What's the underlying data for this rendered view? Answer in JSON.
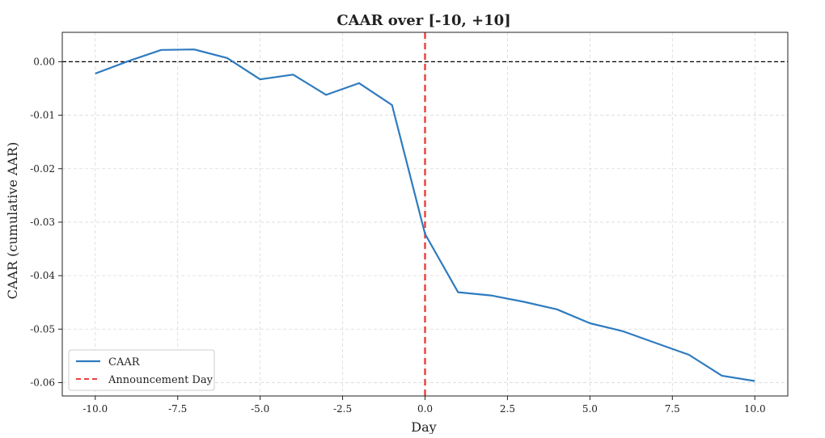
{
  "chart_data": {
    "type": "line",
    "title": "CAAR over [-10, +10]",
    "xlabel": "Day",
    "ylabel": "CAAR (cumulative AAR)",
    "xlim": [
      -11,
      11
    ],
    "ylim": [
      -0.0625,
      0.0055
    ],
    "x_ticks": [
      -10,
      -7.5,
      -5,
      -2.5,
      0,
      2.5,
      5,
      7.5,
      10
    ],
    "x_tick_labels": [
      "-10.0",
      "-7.5",
      "-5.0",
      "-2.5",
      "0.0",
      "2.5",
      "5.0",
      "7.5",
      "10.0"
    ],
    "y_ticks": [
      0,
      -0.01,
      -0.02,
      -0.03,
      -0.04,
      -0.05,
      -0.06
    ],
    "y_tick_labels": [
      "0.00",
      "-0.01",
      "-0.02",
      "-0.03",
      "-0.04",
      "-0.05",
      "-0.06"
    ],
    "grid": true,
    "legend_position": "lower-left",
    "series": [
      {
        "name": "CAAR",
        "color": "#2f7bbf",
        "x": [
          -10,
          -9,
          -8,
          -7,
          -6,
          -5,
          -4,
          -3,
          -2,
          -1,
          0,
          1,
          2,
          3,
          4,
          5,
          6,
          7,
          8,
          9,
          10
        ],
        "values": [
          -0.0022,
          0.0001,
          0.0022,
          0.0023,
          0.0007,
          -0.0033,
          -0.0024,
          -0.0062,
          -0.004,
          -0.0081,
          -0.0322,
          -0.0431,
          -0.0437,
          -0.0449,
          -0.0463,
          -0.0489,
          -0.0504,
          -0.0526,
          -0.0548,
          -0.0587,
          -0.0597
        ]
      }
    ],
    "reference_lines": [
      {
        "type": "horizontal",
        "value": 0,
        "color": "#000000",
        "style": "dashed"
      },
      {
        "type": "vertical",
        "value": 0,
        "color": "#e8413c",
        "style": "dashed",
        "name": "Announcement Day"
      }
    ]
  }
}
